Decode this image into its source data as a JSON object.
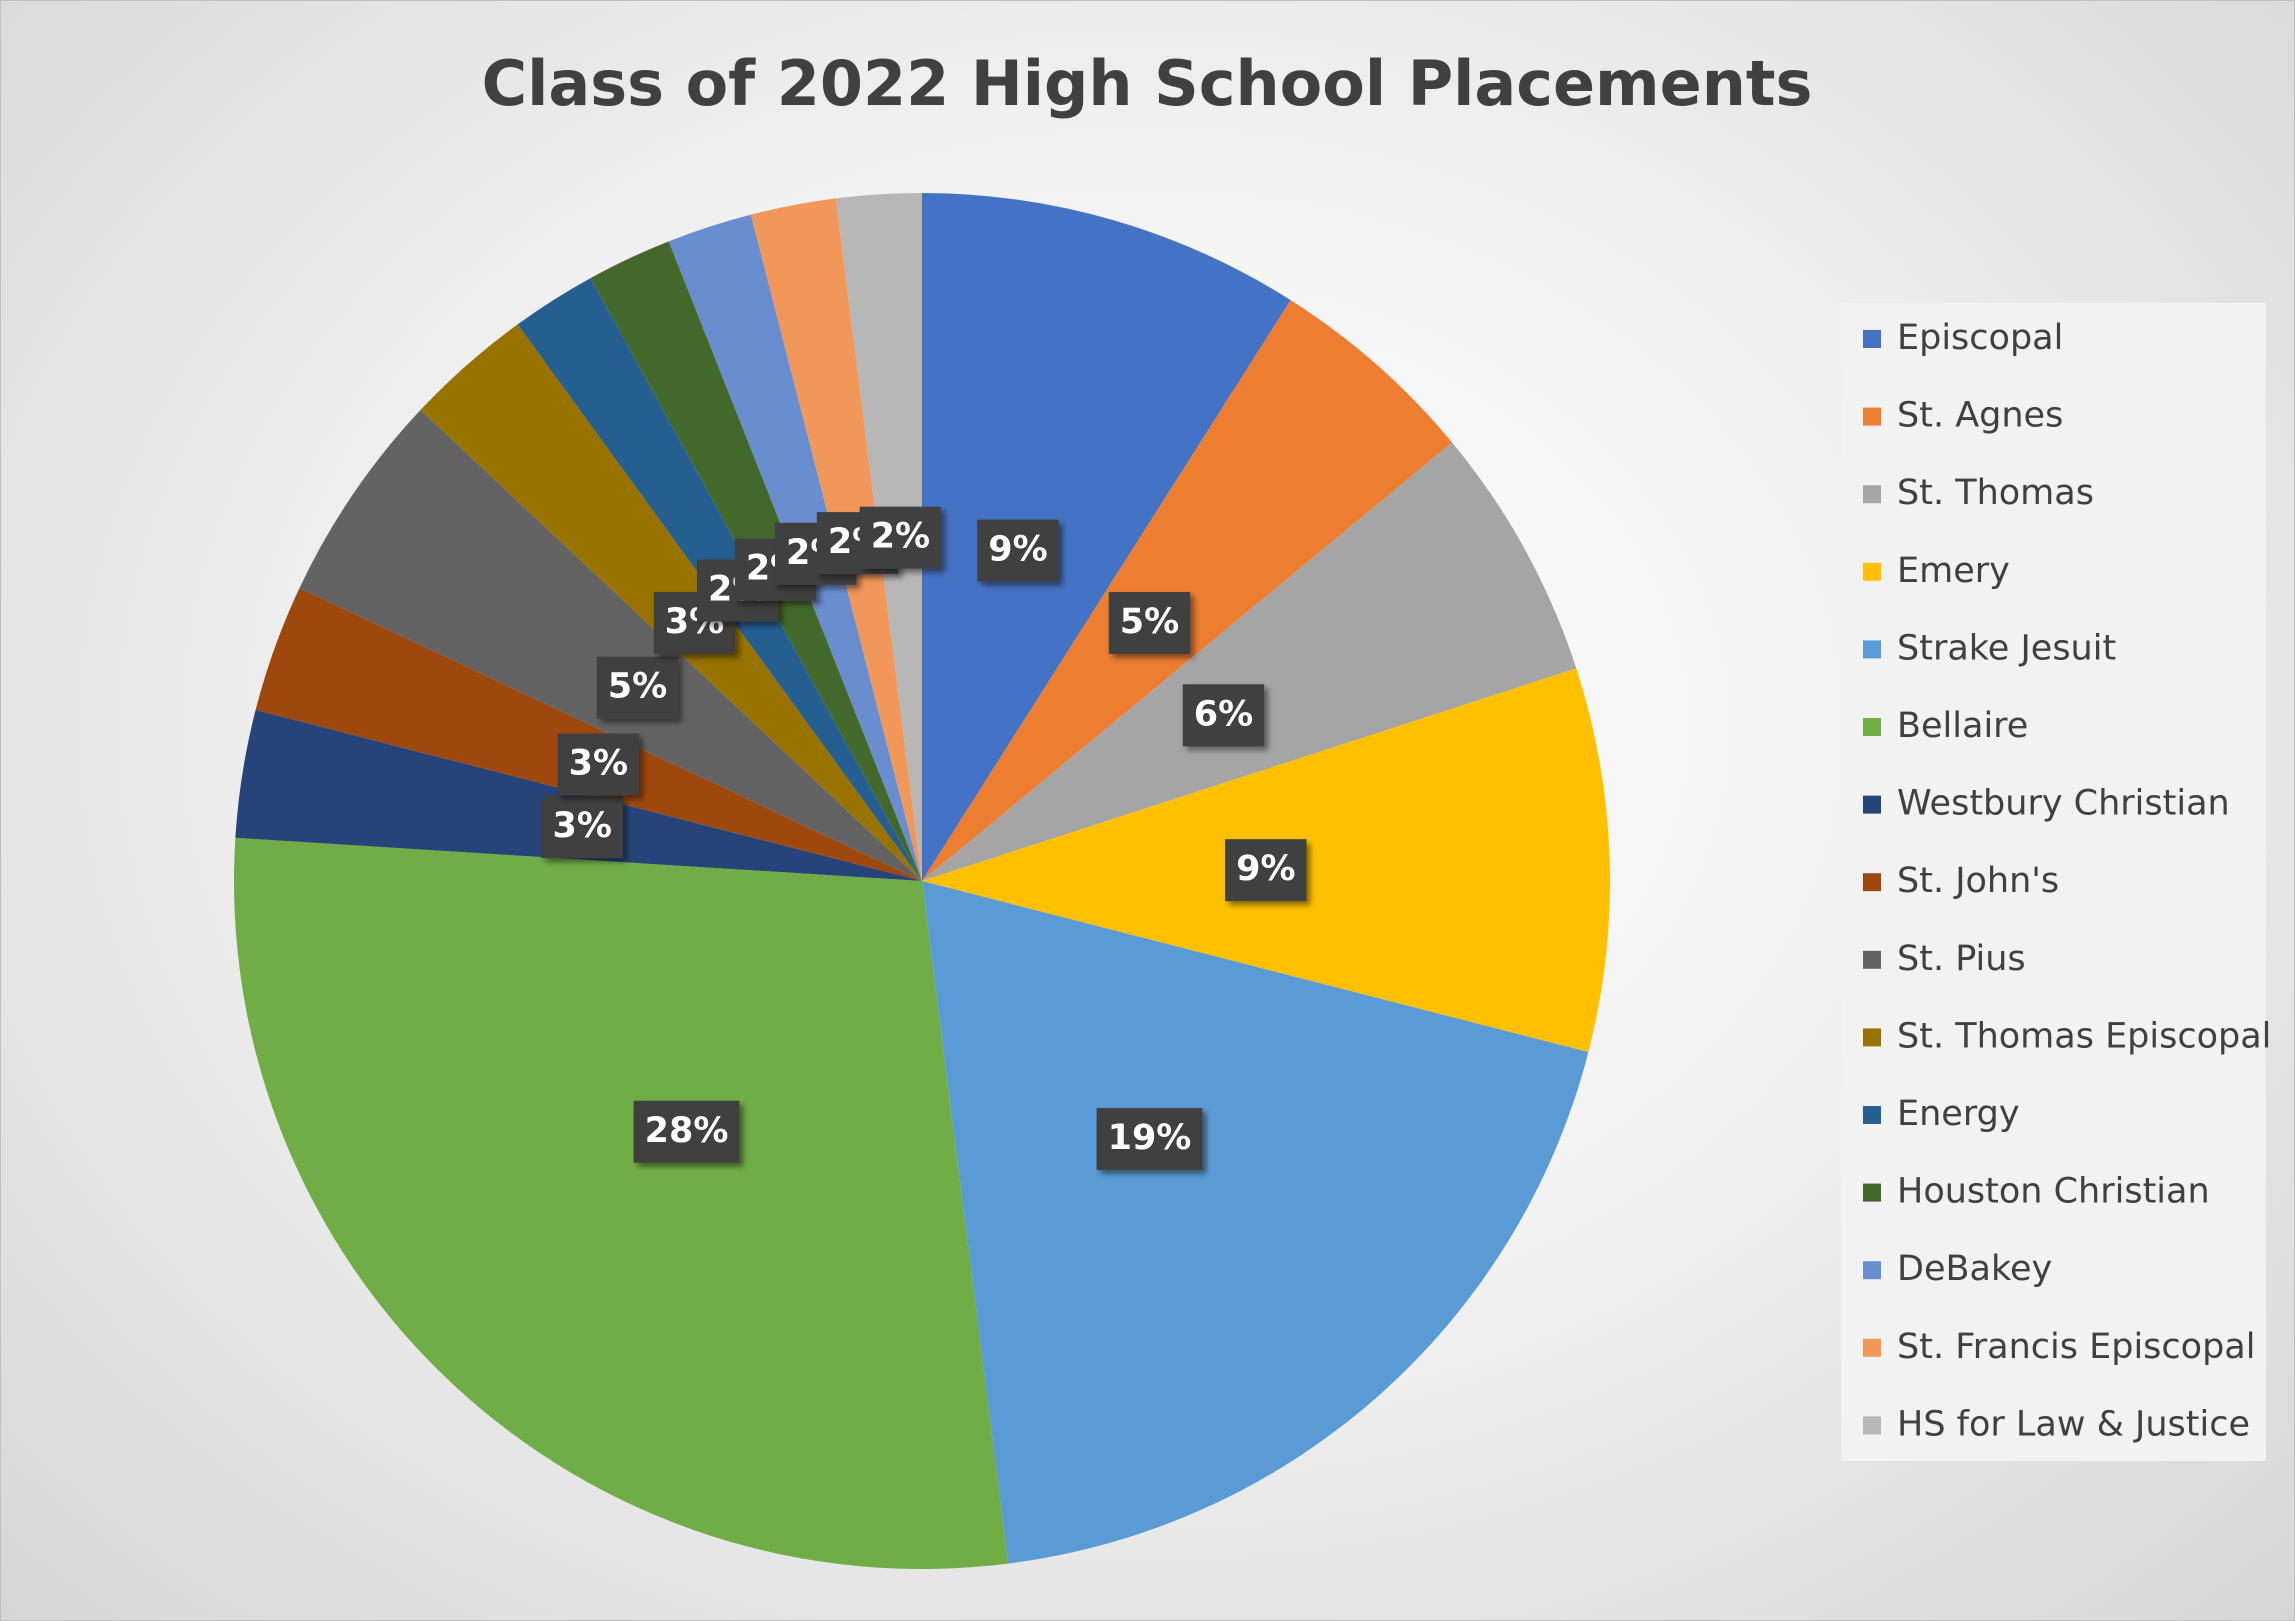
{
  "chart_data": {
    "type": "pie",
    "title": "Class of 2022 High School Placements",
    "categories": [
      "Episcopal",
      "St. Agnes",
      "St. Thomas",
      "Emery",
      "Strake Jesuit",
      "Bellaire",
      "Westbury Christian",
      "St. John's",
      "St. Pius",
      "St. Thomas Episcopal",
      "Energy",
      "Houston Christian",
      "DeBakey",
      "St. Francis Episcopal",
      "HS for Law & Justice"
    ],
    "values": [
      9,
      5,
      6,
      9,
      19,
      28,
      3,
      3,
      5,
      3,
      2,
      2,
      2,
      2,
      2
    ],
    "value_labels": [
      "9%",
      "5%",
      "6%",
      "9%",
      "19%",
      "28%",
      "3%",
      "3%",
      "5%",
      "3%",
      "2%",
      "2%",
      "2%",
      "2%",
      "2%"
    ],
    "colors": [
      "#4472c4",
      "#ed7d31",
      "#a5a5a5",
      "#ffc000",
      "#5b9bd5",
      "#70ad47",
      "#264478",
      "#9e480e",
      "#636363",
      "#997300",
      "#255e91",
      "#43682b",
      "#698ed0",
      "#f1975a",
      "#b7b7b7"
    ],
    "legend": "right"
  }
}
